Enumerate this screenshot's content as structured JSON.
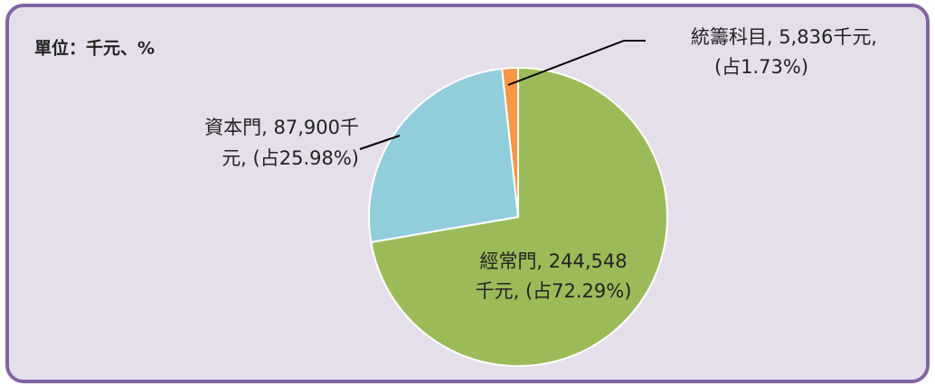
{
  "chart_data": {
    "type": "pie",
    "unit_note": "單位：千元、%",
    "categories": [
      "經常門",
      "資本門",
      "統籌科目"
    ],
    "values": [
      244548,
      87900,
      5836
    ],
    "colors": [
      "#9bbb59",
      "#92cddc",
      "#f79646"
    ],
    "labels": [
      [
        "經常門, 244,548",
        "千元, (占72.29%)"
      ],
      [
        "資本門, 87,900千",
        "元, (占25.98%)"
      ],
      [
        "統籌科目, 5,836千元,",
        "(占1.73%)"
      ]
    ]
  }
}
